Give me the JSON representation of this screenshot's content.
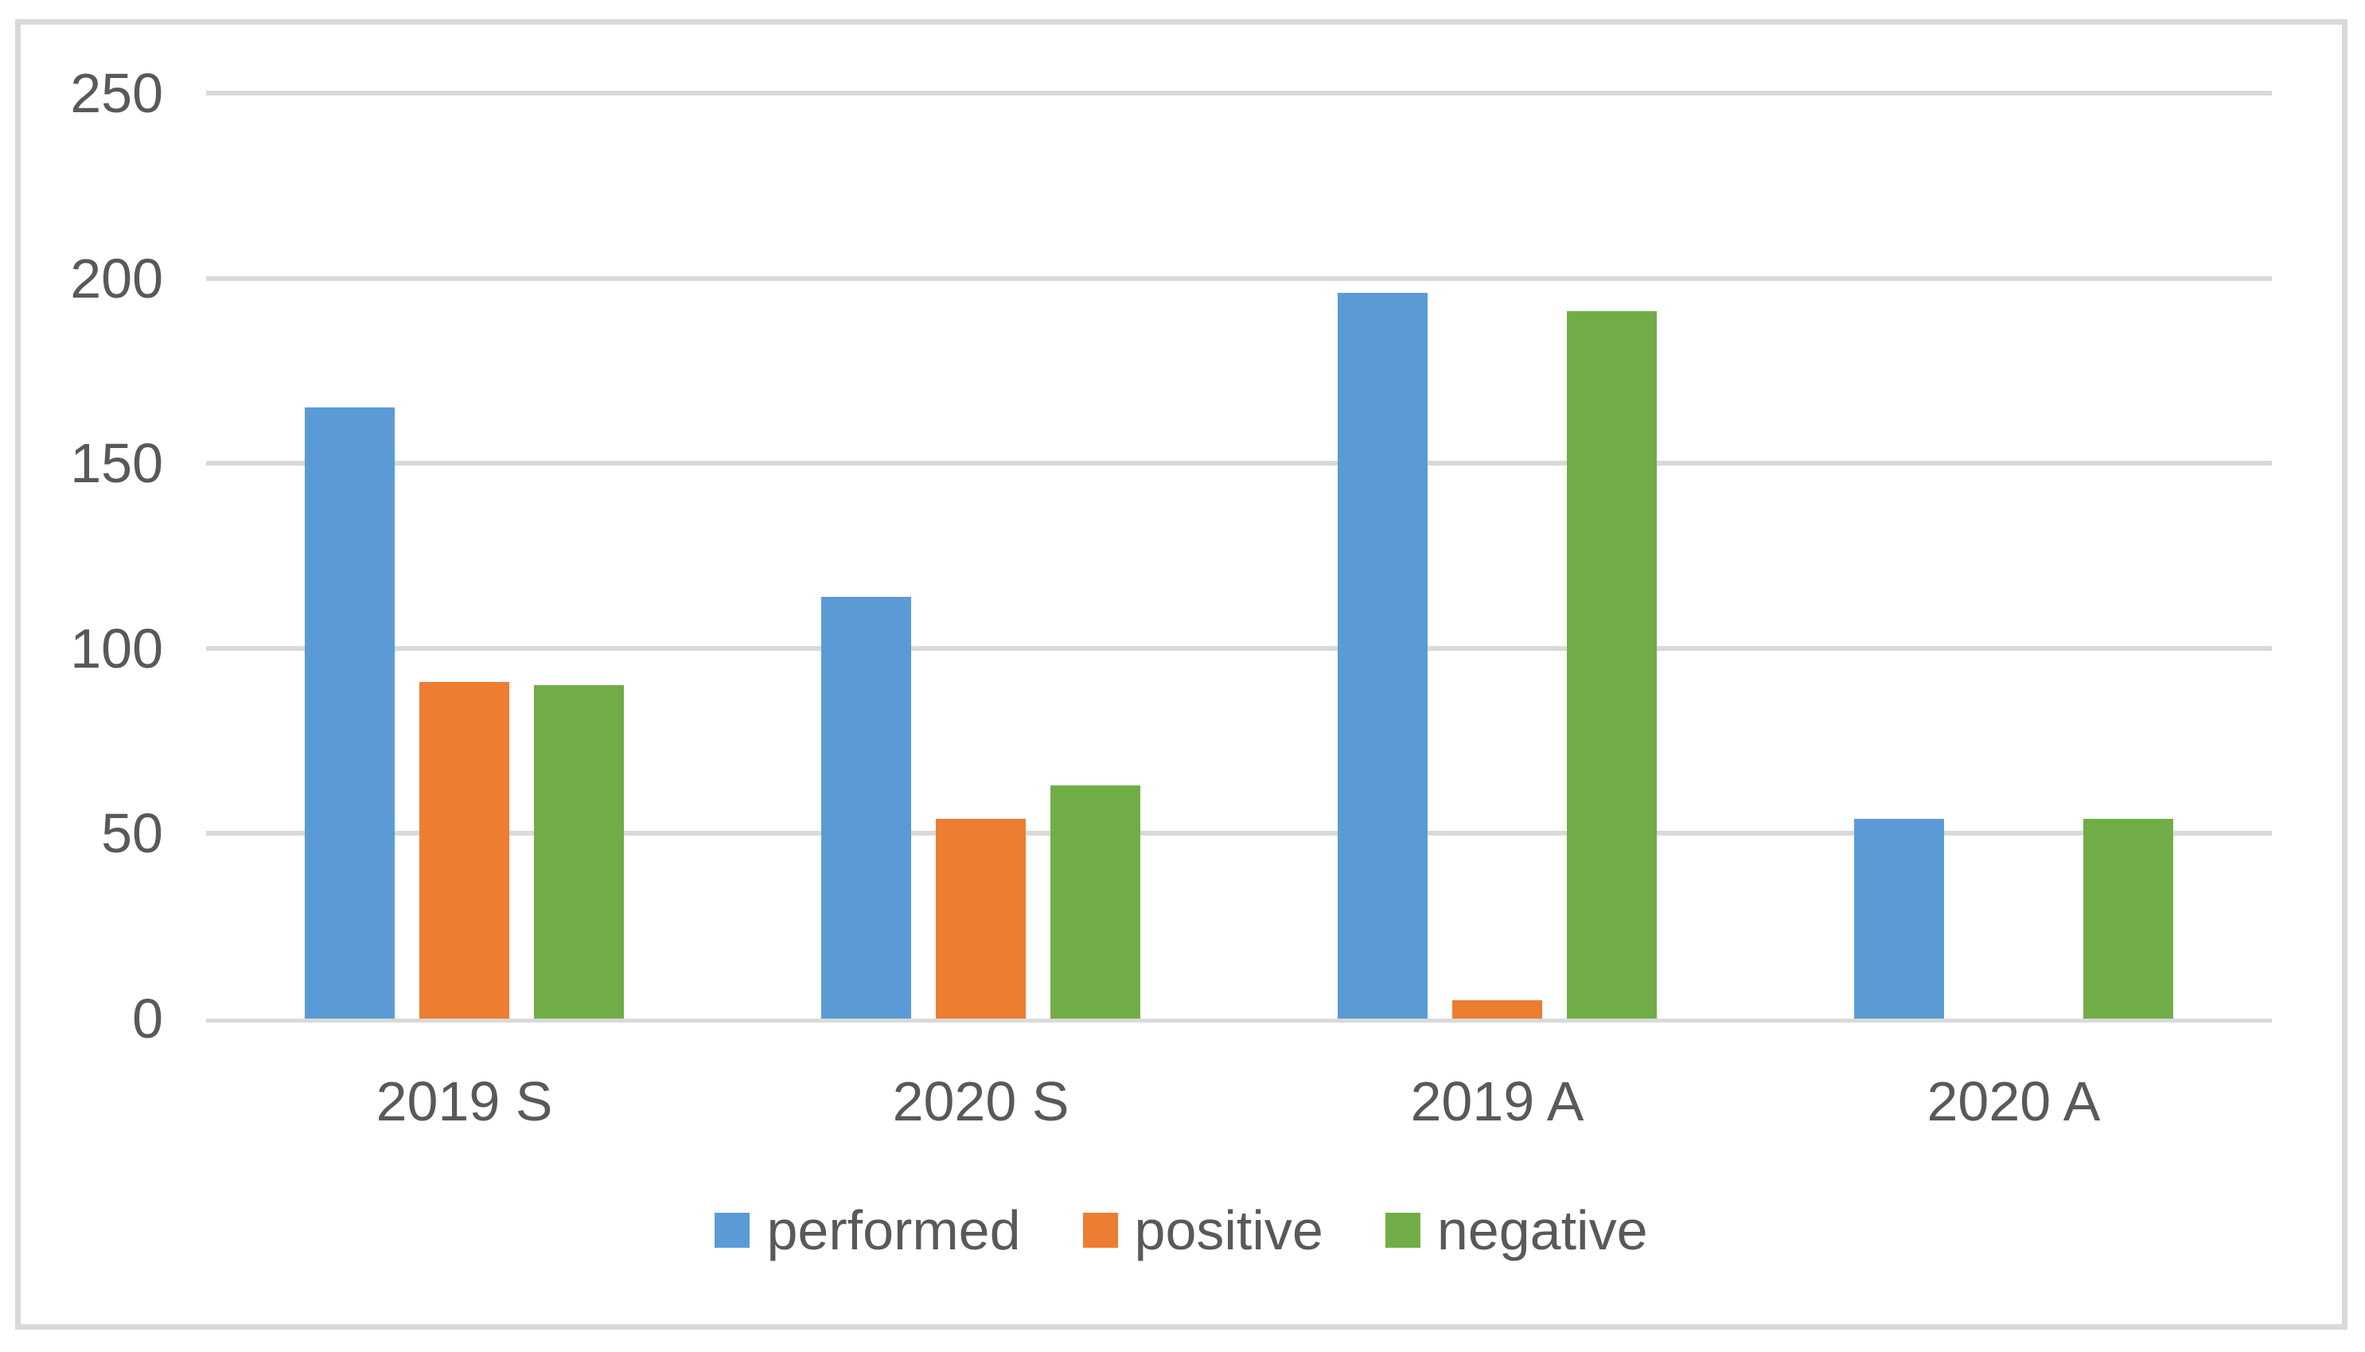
{
  "chart_data": {
    "type": "bar",
    "title": "",
    "categories": [
      "2019 S",
      "2020 S",
      "2019 A",
      "2020 A"
    ],
    "series": [
      {
        "name": "performed",
        "color": "#5B9BD5",
        "values": [
          165,
          114,
          196,
          54
        ]
      },
      {
        "name": "positive",
        "color": "#ED7D31",
        "values": [
          91,
          54,
          5,
          0
        ]
      },
      {
        "name": "negative",
        "color": "#70AD47",
        "values": [
          90,
          63,
          191,
          54
        ]
      }
    ],
    "ylim": [
      0,
      250
    ],
    "ytick_interval": 50,
    "yticks": [
      0,
      50,
      100,
      150,
      200,
      250
    ],
    "grid": true,
    "legend_position": "bottom",
    "xlabel": "",
    "ylabel": "",
    "colors": {
      "gridline": "#D9D9D9",
      "axis_line": "#D9D9D9",
      "tick_text": "#595959",
      "figure_border": "#D9D9D9",
      "background": "#FFFFFF"
    }
  }
}
